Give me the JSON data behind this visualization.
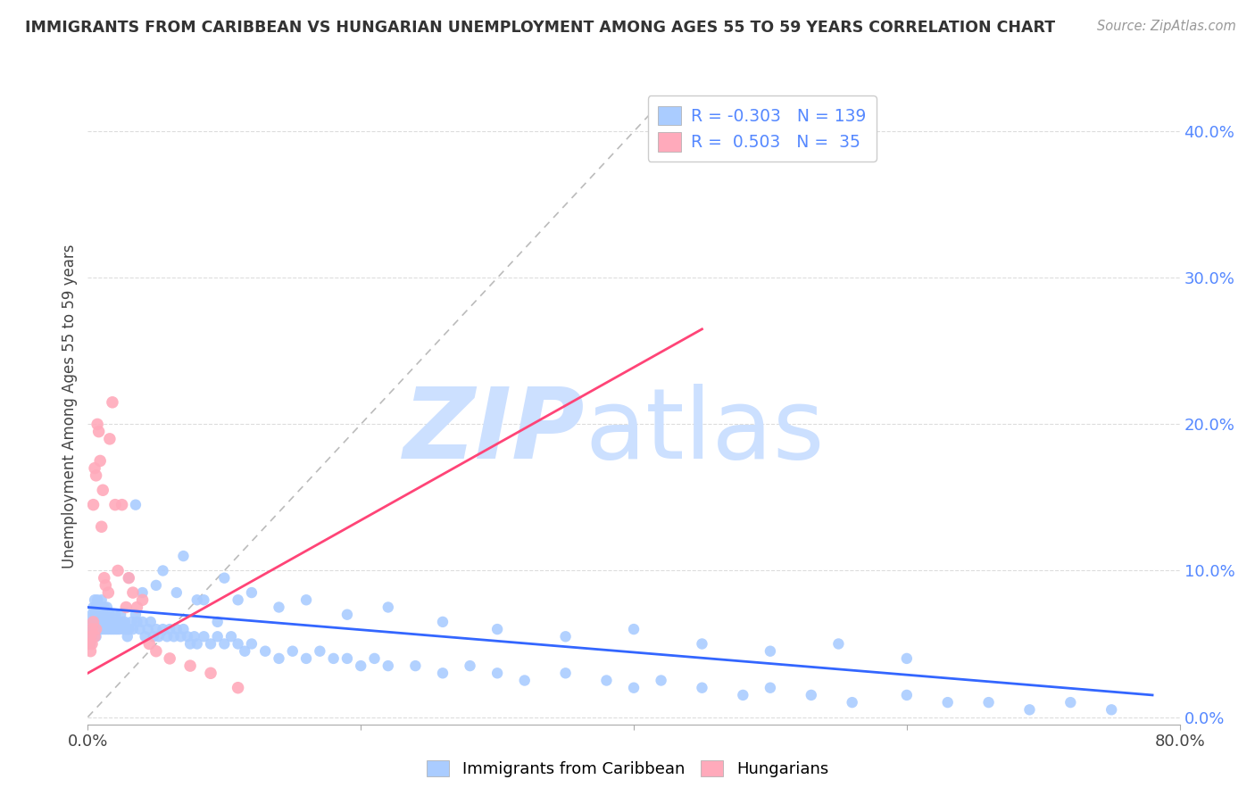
{
  "title": "IMMIGRANTS FROM CARIBBEAN VS HUNGARIAN UNEMPLOYMENT AMONG AGES 55 TO 59 YEARS CORRELATION CHART",
  "source": "Source: ZipAtlas.com",
  "ylabel": "Unemployment Among Ages 55 to 59 years",
  "ytick_vals": [
    0.0,
    0.1,
    0.2,
    0.3,
    0.4
  ],
  "ytick_labels": [
    "0.0%",
    "10.0%",
    "20.0%",
    "30.0%",
    "40.0%"
  ],
  "xlim": [
    0.0,
    0.8
  ],
  "ylim": [
    -0.005,
    0.43
  ],
  "legend_blue_R": "-0.303",
  "legend_blue_N": "139",
  "legend_pink_R": "0.503",
  "legend_pink_N": "35",
  "blue_scatter_color": "#aaccff",
  "pink_scatter_color": "#ffaabb",
  "blue_line_color": "#3366ff",
  "pink_line_color": "#ff4477",
  "diag_line_color": "#bbbbbb",
  "watermark_zip_color": "#cce0ff",
  "watermark_atlas_color": "#cce0ff",
  "background_color": "#ffffff",
  "grid_color": "#dddddd",
  "title_color": "#333333",
  "source_color": "#999999",
  "axis_color": "#aaaaaa",
  "right_tick_color": "#5588ff",
  "blue_x": [
    0.001,
    0.002,
    0.002,
    0.003,
    0.003,
    0.003,
    0.004,
    0.004,
    0.004,
    0.005,
    0.005,
    0.005,
    0.006,
    0.006,
    0.006,
    0.007,
    0.007,
    0.007,
    0.008,
    0.008,
    0.008,
    0.009,
    0.009,
    0.01,
    0.01,
    0.01,
    0.011,
    0.011,
    0.012,
    0.012,
    0.013,
    0.013,
    0.014,
    0.014,
    0.015,
    0.015,
    0.016,
    0.016,
    0.017,
    0.018,
    0.019,
    0.02,
    0.02,
    0.021,
    0.022,
    0.023,
    0.024,
    0.025,
    0.026,
    0.027,
    0.028,
    0.029,
    0.03,
    0.032,
    0.033,
    0.035,
    0.036,
    0.038,
    0.04,
    0.042,
    0.044,
    0.046,
    0.048,
    0.05,
    0.052,
    0.055,
    0.058,
    0.06,
    0.063,
    0.065,
    0.068,
    0.07,
    0.073,
    0.075,
    0.078,
    0.08,
    0.085,
    0.09,
    0.095,
    0.1,
    0.105,
    0.11,
    0.115,
    0.12,
    0.13,
    0.14,
    0.15,
    0.16,
    0.17,
    0.18,
    0.19,
    0.2,
    0.21,
    0.22,
    0.24,
    0.26,
    0.28,
    0.3,
    0.32,
    0.35,
    0.38,
    0.4,
    0.42,
    0.45,
    0.48,
    0.5,
    0.53,
    0.56,
    0.6,
    0.63,
    0.66,
    0.69,
    0.72,
    0.75,
    0.03,
    0.04,
    0.055,
    0.07,
    0.085,
    0.1,
    0.12,
    0.14,
    0.16,
    0.19,
    0.22,
    0.26,
    0.3,
    0.35,
    0.4,
    0.45,
    0.5,
    0.55,
    0.6,
    0.035,
    0.05,
    0.065,
    0.08,
    0.095,
    0.11
  ],
  "blue_y": [
    0.055,
    0.06,
    0.05,
    0.065,
    0.055,
    0.07,
    0.06,
    0.075,
    0.065,
    0.07,
    0.06,
    0.08,
    0.065,
    0.075,
    0.055,
    0.07,
    0.065,
    0.08,
    0.06,
    0.075,
    0.065,
    0.07,
    0.06,
    0.075,
    0.065,
    0.08,
    0.06,
    0.07,
    0.065,
    0.075,
    0.06,
    0.07,
    0.065,
    0.075,
    0.06,
    0.07,
    0.065,
    0.07,
    0.06,
    0.065,
    0.06,
    0.07,
    0.065,
    0.06,
    0.065,
    0.06,
    0.07,
    0.065,
    0.06,
    0.065,
    0.06,
    0.055,
    0.06,
    0.065,
    0.06,
    0.07,
    0.065,
    0.06,
    0.065,
    0.055,
    0.06,
    0.065,
    0.055,
    0.06,
    0.055,
    0.06,
    0.055,
    0.06,
    0.055,
    0.06,
    0.055,
    0.06,
    0.055,
    0.05,
    0.055,
    0.05,
    0.055,
    0.05,
    0.055,
    0.05,
    0.055,
    0.05,
    0.045,
    0.05,
    0.045,
    0.04,
    0.045,
    0.04,
    0.045,
    0.04,
    0.04,
    0.035,
    0.04,
    0.035,
    0.035,
    0.03,
    0.035,
    0.03,
    0.025,
    0.03,
    0.025,
    0.02,
    0.025,
    0.02,
    0.015,
    0.02,
    0.015,
    0.01,
    0.015,
    0.01,
    0.01,
    0.005,
    0.01,
    0.005,
    0.095,
    0.085,
    0.1,
    0.11,
    0.08,
    0.095,
    0.085,
    0.075,
    0.08,
    0.07,
    0.075,
    0.065,
    0.06,
    0.055,
    0.06,
    0.05,
    0.045,
    0.05,
    0.04,
    0.145,
    0.09,
    0.085,
    0.08,
    0.065,
    0.08
  ],
  "pink_x": [
    0.001,
    0.002,
    0.002,
    0.003,
    0.003,
    0.004,
    0.004,
    0.005,
    0.005,
    0.006,
    0.006,
    0.007,
    0.008,
    0.009,
    0.01,
    0.011,
    0.012,
    0.013,
    0.015,
    0.016,
    0.018,
    0.02,
    0.022,
    0.025,
    0.028,
    0.03,
    0.033,
    0.036,
    0.04,
    0.045,
    0.05,
    0.06,
    0.075,
    0.09,
    0.11
  ],
  "pink_y": [
    0.05,
    0.045,
    0.055,
    0.05,
    0.06,
    0.065,
    0.145,
    0.055,
    0.17,
    0.165,
    0.06,
    0.2,
    0.195,
    0.175,
    0.13,
    0.155,
    0.095,
    0.09,
    0.085,
    0.19,
    0.215,
    0.145,
    0.1,
    0.145,
    0.075,
    0.095,
    0.085,
    0.075,
    0.08,
    0.05,
    0.045,
    0.04,
    0.035,
    0.03,
    0.02
  ],
  "blue_line_x": [
    0.0,
    0.78
  ],
  "blue_line_y": [
    0.075,
    0.015
  ],
  "pink_line_x": [
    0.0,
    0.45
  ],
  "pink_line_y": [
    0.03,
    0.265
  ]
}
